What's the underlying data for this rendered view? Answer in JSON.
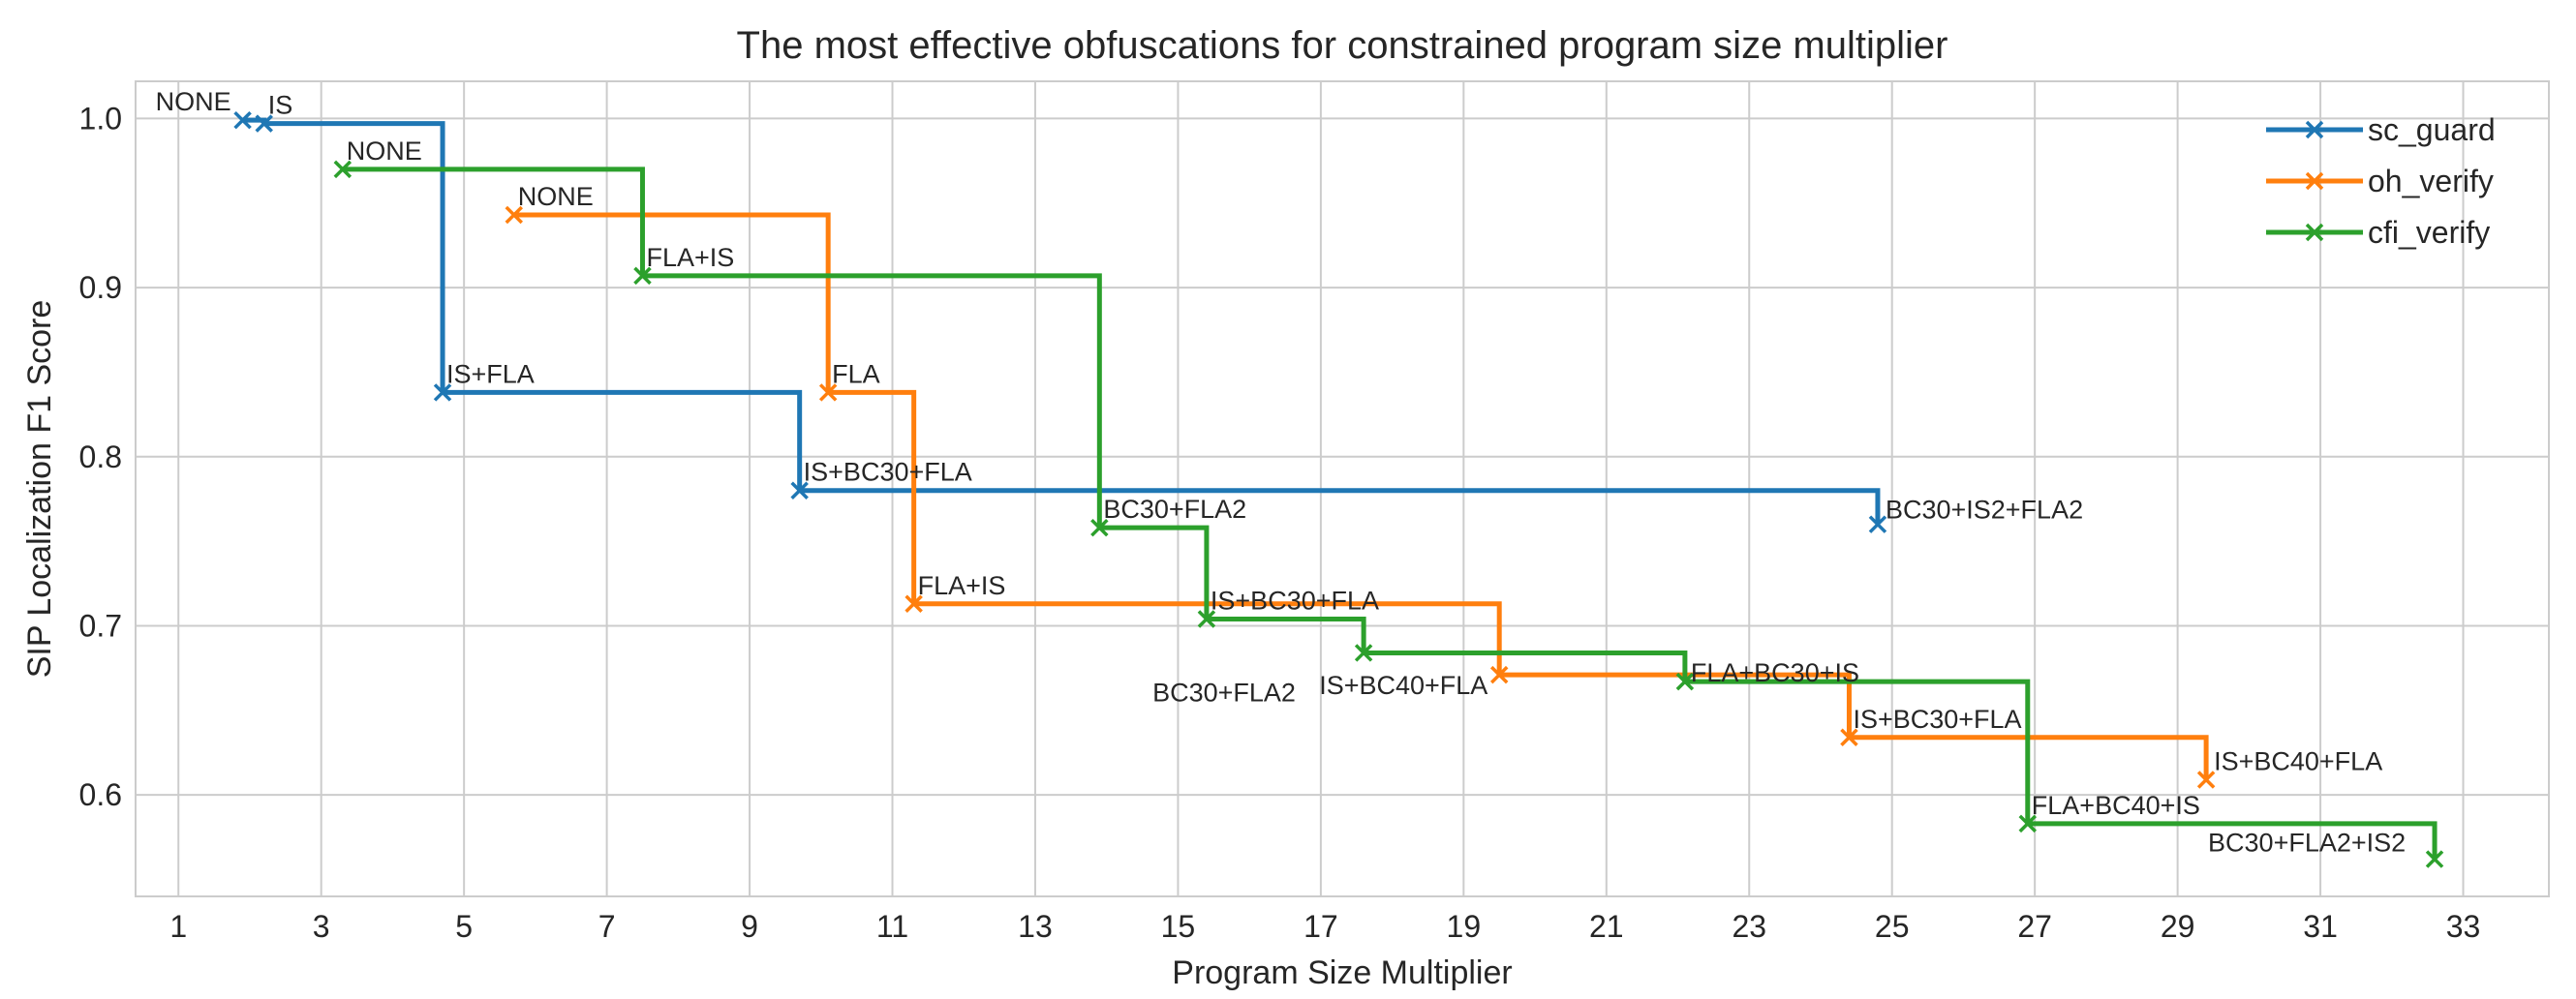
{
  "chart_data": {
    "type": "line",
    "step": "post",
    "title": "The most effective obfuscations for constrained program size multiplier",
    "xlabel": "Program Size Multiplier",
    "ylabel": "SIP Localization F1 Score",
    "xlim": [
      0.4,
      34.2
    ],
    "ylim": [
      0.54,
      1.022
    ],
    "xticks": [
      1,
      3,
      5,
      7,
      9,
      11,
      13,
      15,
      17,
      19,
      21,
      23,
      25,
      27,
      29,
      31,
      33
    ],
    "yticks": [
      0.6,
      0.7,
      0.8,
      0.9,
      1.0
    ],
    "ytick_labels": [
      "0.6",
      "0.7",
      "0.8",
      "0.9",
      "1.0"
    ],
    "grid": true,
    "legend_position": "top-right",
    "series": [
      {
        "name": "sc_guard",
        "color": "#1f77b4",
        "marker": "x",
        "points": [
          {
            "x": 1.9,
            "y": 0.999,
            "label": "NONE"
          },
          {
            "x": 2.2,
            "y": 0.997,
            "label": "IS"
          },
          {
            "x": 4.7,
            "y": 0.838,
            "label": "IS+FLA"
          },
          {
            "x": 9.7,
            "y": 0.78,
            "label": "IS+BC30+FLA"
          },
          {
            "x": 24.8,
            "y": 0.76,
            "label": "BC30+IS2+FLA2"
          }
        ]
      },
      {
        "name": "oh_verify",
        "color": "#ff7f0e",
        "marker": "x",
        "points": [
          {
            "x": 5.7,
            "y": 0.943,
            "label": "NONE"
          },
          {
            "x": 10.1,
            "y": 0.838,
            "label": "FLA"
          },
          {
            "x": 11.3,
            "y": 0.713,
            "label": "FLA+IS"
          },
          {
            "x": 19.5,
            "y": 0.671,
            "label": "IS+BC40+FLA"
          },
          {
            "x": 24.4,
            "y": 0.634,
            "label": "IS+BC30+FLA"
          },
          {
            "x": 29.4,
            "y": 0.609,
            "label": "IS+BC40+FLA"
          }
        ]
      },
      {
        "name": "cfi_verify",
        "color": "#2ca02c",
        "marker": "x",
        "points": [
          {
            "x": 3.3,
            "y": 0.97,
            "label": "NONE"
          },
          {
            "x": 7.5,
            "y": 0.907,
            "label": "FLA+IS"
          },
          {
            "x": 13.9,
            "y": 0.758,
            "label": "BC30+FLA2"
          },
          {
            "x": 15.4,
            "y": 0.704,
            "label": "IS+BC30+FLA"
          },
          {
            "x": 17.6,
            "y": 0.684,
            "label": "BC30+FLA2"
          },
          {
            "x": 22.1,
            "y": 0.667,
            "label": "FLA+BC30+IS"
          },
          {
            "x": 26.9,
            "y": 0.583,
            "label": "FLA+BC40+IS"
          },
          {
            "x": 32.6,
            "y": 0.562,
            "label": "BC30+FLA2+IS2"
          }
        ]
      }
    ]
  }
}
